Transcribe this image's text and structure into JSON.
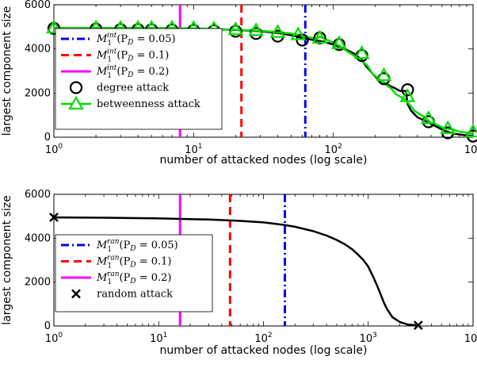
{
  "chart_data": [
    {
      "type": "line",
      "xscale": "log",
      "xlim": [
        1,
        1000
      ],
      "ylim": [
        0,
        6000
      ],
      "xticks": [
        {
          "value": 1,
          "base": "10",
          "exp": "0"
        },
        {
          "value": 10,
          "base": "10",
          "exp": "1"
        },
        {
          "value": 100,
          "base": "10",
          "exp": "2"
        },
        {
          "value": 1000,
          "base": "10",
          "exp": "3"
        }
      ],
      "yticks": [
        {
          "value": 0,
          "label": "0"
        },
        {
          "value": 2000,
          "label": "2000"
        },
        {
          "value": 4000,
          "label": "4000"
        },
        {
          "value": 6000,
          "label": "6000"
        }
      ],
      "xlabel": "number of attacked nodes (log scale)",
      "ylabel": "largest component size",
      "legend_position": "bottom-left",
      "vlines": [
        {
          "name": "M1int(PD=0.05)",
          "label_parts": [
            "M",
            "1",
            "int",
            "(P",
            "D",
            " = 0.05)"
          ],
          "x": 63,
          "color": "#0000ff",
          "style": "dashdot"
        },
        {
          "name": "M1int(PD=0.1)",
          "label_parts": [
            "M",
            "1",
            "int",
            "(P",
            "D",
            " = 0.1)"
          ],
          "x": 22,
          "color": "#ff0000",
          "style": "dashed"
        },
        {
          "name": "M1int(PD=0.2)",
          "label_parts": [
            "M",
            "1",
            "int",
            "(P",
            "D",
            " = 0.2)"
          ],
          "x": 8,
          "color": "#ff00ff",
          "style": "solid"
        }
      ],
      "series": [
        {
          "name": "degree attack",
          "color": "#000000",
          "marker": "circle",
          "x": [
            1,
            2,
            3,
            5,
            7,
            10,
            15,
            20,
            30,
            40,
            50,
            60,
            70,
            80,
            90,
            100,
            110,
            125,
            140,
            160,
            170,
            190,
            210,
            225,
            250,
            280,
            300,
            330,
            340,
            360,
            400,
            450,
            500,
            560,
            620,
            680,
            750,
            850,
            1000
          ],
          "y": [
            4950,
            4945,
            4940,
            4930,
            4920,
            4905,
            4890,
            4860,
            4800,
            4720,
            4620,
            4500,
            4420,
            4360,
            4280,
            4200,
            4100,
            3950,
            3800,
            3500,
            3250,
            2900,
            2600,
            2500,
            2350,
            2200,
            2100,
            2100,
            1500,
            1200,
            900,
            750,
            600,
            450,
            300,
            220,
            150,
            100,
            50
          ],
          "marker_x": [
            1,
            2,
            3,
            4,
            5,
            7,
            10,
            14,
            20,
            28,
            40,
            60,
            80,
            110,
            160,
            230,
            340,
            480,
            660,
            1000
          ],
          "marker_y": [
            4930,
            4900,
            4880,
            4880,
            4870,
            4860,
            4840,
            4820,
            4800,
            4700,
            4580,
            4400,
            4500,
            4200,
            3700,
            2650,
            2150,
            700,
            200,
            50
          ]
        },
        {
          "name": "betweenness attack",
          "color": "#00dd00",
          "marker": "triangle",
          "x": [
            1,
            2,
            3,
            5,
            7,
            10,
            15,
            20,
            30,
            40,
            50,
            60,
            70,
            75,
            80,
            95,
            110,
            125,
            140,
            160,
            175,
            190,
            215,
            230,
            260,
            280,
            320,
            360,
            380,
            450,
            500,
            560,
            620,
            720,
            800,
            900,
            1000
          ],
          "y": [
            4950,
            4950,
            4950,
            4945,
            4940,
            4930,
            4900,
            4870,
            4820,
            4760,
            4700,
            4600,
            4500,
            4450,
            4550,
            4350,
            4150,
            3900,
            3700,
            3450,
            3250,
            2900,
            2600,
            2450,
            2200,
            1950,
            1750,
            1400,
            1200,
            900,
            650,
            550,
            400,
            350,
            250,
            200,
            150
          ],
          "marker_x": [
            1,
            2,
            3,
            4,
            5,
            7,
            10,
            14,
            20,
            28,
            40,
            56,
            80,
            110,
            160,
            230,
            340,
            480,
            660,
            1000
          ],
          "marker_y": [
            4960,
            4950,
            4950,
            4950,
            4950,
            4950,
            4940,
            4920,
            4880,
            4840,
            4760,
            4650,
            4500,
            4250,
            3800,
            2800,
            1850,
            850,
            400,
            250
          ]
        }
      ]
    },
    {
      "type": "line",
      "xscale": "log",
      "xlim": [
        1,
        10000
      ],
      "ylim": [
        0,
        6000
      ],
      "xticks": [
        {
          "value": 1,
          "base": "10",
          "exp": "0"
        },
        {
          "value": 10,
          "base": "10",
          "exp": "1"
        },
        {
          "value": 100,
          "base": "10",
          "exp": "2"
        },
        {
          "value": 1000,
          "base": "10",
          "exp": "3"
        },
        {
          "value": 10000,
          "base": "10",
          "exp": "4"
        }
      ],
      "yticks": [
        {
          "value": 0,
          "label": "0"
        },
        {
          "value": 2000,
          "label": "2000"
        },
        {
          "value": 4000,
          "label": "4000"
        },
        {
          "value": 6000,
          "label": "6000"
        }
      ],
      "xlabel": "number of attacked nodes (log scale)",
      "ylabel": "largest component size",
      "legend_position": "bottom-left",
      "vlines": [
        {
          "name": "M1ran(PD=0.05)",
          "label_parts": [
            "M",
            "1",
            "ran",
            "(P",
            "D",
            " = 0.05)"
          ],
          "x": 160,
          "color": "#0000ff",
          "style": "dashdot"
        },
        {
          "name": "M1ran(PD=0.1)",
          "label_parts": [
            "M",
            "1",
            "ran",
            "(P",
            "D",
            " = 0.1)"
          ],
          "x": 48,
          "color": "#ff0000",
          "style": "dashed"
        },
        {
          "name": "M1ran(PD=0.2)",
          "label_parts": [
            "M",
            "1",
            "ran",
            "(P",
            "D",
            " = 0.2)"
          ],
          "x": 16,
          "color": "#ff00ff",
          "style": "solid"
        }
      ],
      "series": [
        {
          "name": "random attack",
          "color": "#000000",
          "marker": "x",
          "x": [
            1,
            3,
            10,
            30,
            60,
            100,
            150,
            200,
            300,
            400,
            500,
            600,
            700,
            800,
            900,
            1000,
            1100,
            1200,
            1300,
            1400,
            1500,
            1700,
            2000,
            2400,
            3000
          ],
          "y": [
            4950,
            4935,
            4900,
            4850,
            4790,
            4720,
            4620,
            4520,
            4320,
            4120,
            3920,
            3720,
            3500,
            3250,
            3000,
            2700,
            2300,
            1900,
            1500,
            1100,
            800,
            400,
            180,
            60,
            30
          ],
          "marker_x": [
            1,
            3000
          ],
          "marker_y": [
            4950,
            30
          ]
        }
      ]
    }
  ]
}
